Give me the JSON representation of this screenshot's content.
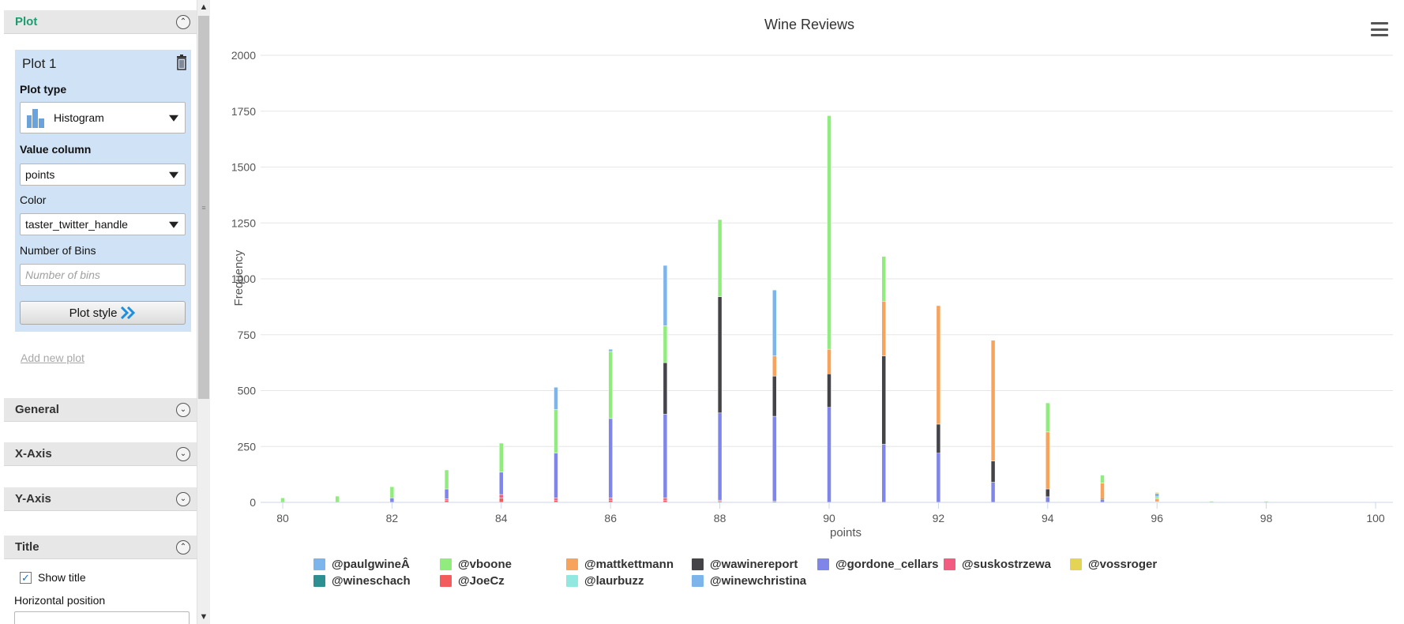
{
  "panel": {
    "plot_section": {
      "title": "Plot",
      "toggle_icon": "double-chevron-up-icon"
    },
    "plot_card": {
      "title": "Plot 1",
      "plot_type_label": "Plot type",
      "plot_type_value": "Histogram",
      "value_column_label": "Value column",
      "value_column_value": "points",
      "color_label": "Color",
      "color_value": "taster_twitter_handle",
      "bins_label": "Number of Bins",
      "bins_placeholder": "Number of bins",
      "plot_style_label": "Plot style"
    },
    "add_plot_label": "Add new plot",
    "general_section": {
      "title": "General"
    },
    "xaxis_section": {
      "title": "X-Axis"
    },
    "yaxis_section": {
      "title": "Y-Axis"
    },
    "title_section": {
      "title": "Title"
    },
    "show_title_label": "Show title",
    "show_title_checked": true,
    "horizontal_position_label": "Horizontal position"
  },
  "chart_data": {
    "type": "bar",
    "title": "Wine Reviews",
    "xlabel": "points",
    "ylabel": "Frequency",
    "xlim": [
      80,
      100
    ],
    "ylim": [
      0,
      2000
    ],
    "x_ticks": [
      "80",
      "82",
      "84",
      "86",
      "88",
      "90",
      "92",
      "94",
      "96",
      "98",
      "100"
    ],
    "y_ticks": [
      "0",
      "250",
      "500",
      "750",
      "1000",
      "1250",
      "1500",
      "1750",
      "2000"
    ],
    "grid": true,
    "legend_position": "bottom",
    "stacked": true,
    "x": [
      80,
      81,
      82,
      83,
      84,
      85,
      86,
      87,
      88,
      89,
      90,
      91,
      92,
      93,
      94,
      95,
      96,
      97,
      98
    ],
    "series": [
      {
        "name": "@JoeCz",
        "color": "#f15c5c",
        "values": [
          0,
          0,
          0,
          10,
          20,
          10,
          10,
          10,
          5,
          5,
          0,
          0,
          0,
          0,
          0,
          0,
          0,
          0,
          0
        ]
      },
      {
        "name": "@suskostrzewa",
        "color": "#f45b7e",
        "values": [
          0,
          0,
          0,
          5,
          15,
          10,
          10,
          10,
          5,
          0,
          0,
          0,
          0,
          0,
          0,
          0,
          0,
          0,
          0
        ]
      },
      {
        "name": "@gordone_cellars",
        "color": "#8085e9",
        "values": [
          0,
          0,
          20,
          45,
          100,
          200,
          355,
          375,
          390,
          380,
          425,
          260,
          220,
          90,
          25,
          12,
          3,
          0,
          0
        ]
      },
      {
        "name": "@wawinereport",
        "color": "#434348",
        "values": [
          0,
          0,
          0,
          0,
          0,
          0,
          0,
          230,
          520,
          180,
          150,
          395,
          130,
          95,
          35,
          5,
          0,
          0,
          0
        ]
      },
      {
        "name": "@mattkettmann",
        "color": "#f7a35c",
        "values": [
          0,
          0,
          0,
          0,
          0,
          0,
          0,
          0,
          0,
          90,
          110,
          245,
          530,
          540,
          255,
          70,
          12,
          0,
          0
        ]
      },
      {
        "name": "@vboone",
        "color": "#90ed7d",
        "values": [
          20,
          28,
          50,
          85,
          130,
          195,
          300,
          165,
          345,
          0,
          1045,
          200,
          0,
          0,
          130,
          35,
          10,
          5,
          5
        ]
      },
      {
        "name": "@paulgwineÂ",
        "color": "#7cb5ec",
        "values": [
          0,
          0,
          0,
          0,
          0,
          100,
          10,
          270,
          0,
          295,
          0,
          0,
          0,
          0,
          0,
          0,
          15,
          0,
          0
        ]
      },
      {
        "name": "@vossroger",
        "color": "#e4d354",
        "values": [
          0,
          0,
          0,
          0,
          0,
          0,
          0,
          0,
          0,
          0,
          0,
          0,
          0,
          0,
          0,
          0,
          5,
          0,
          0
        ]
      },
      {
        "name": "@wineschach",
        "color": "#2b908f",
        "values": [
          0,
          0,
          0,
          0,
          0,
          0,
          0,
          0,
          0,
          0,
          0,
          0,
          0,
          0,
          0,
          0,
          0,
          0,
          0
        ]
      },
      {
        "name": "@laurbuzz",
        "color": "#91e8e1",
        "values": [
          0,
          0,
          0,
          0,
          0,
          0,
          0,
          0,
          0,
          0,
          0,
          0,
          0,
          0,
          0,
          0,
          0,
          0,
          0
        ]
      },
      {
        "name": "@winewchristina",
        "color": "#7cb5ec",
        "values": [
          0,
          0,
          0,
          0,
          0,
          0,
          0,
          0,
          0,
          0,
          0,
          0,
          0,
          0,
          0,
          0,
          0,
          0,
          0
        ]
      }
    ],
    "legend": [
      {
        "name": "@paulgwineÂ",
        "color": "#7cb5ec"
      },
      {
        "name": "@vboone",
        "color": "#90ed7d"
      },
      {
        "name": "@mattkettmann",
        "color": "#f7a35c"
      },
      {
        "name": "@wawinereport",
        "color": "#434348"
      },
      {
        "name": "@gordone_cellars",
        "color": "#8085e9"
      },
      {
        "name": "@suskostrzewa",
        "color": "#f15c80"
      },
      {
        "name": "@vossroger",
        "color": "#e4d354"
      },
      {
        "name": "@wineschach",
        "color": "#2b908f"
      },
      {
        "name": "@JoeCz",
        "color": "#f45b5b"
      },
      {
        "name": "@laurbuzz",
        "color": "#91e8e1"
      },
      {
        "name": "@winewchristina",
        "color": "#7cb5ec"
      }
    ]
  }
}
